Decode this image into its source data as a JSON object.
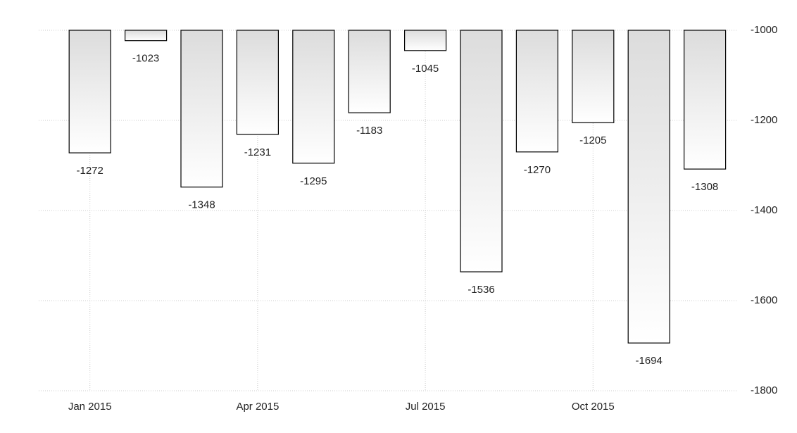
{
  "chart_data": {
    "type": "bar",
    "categories": [
      "Jan 2015",
      null,
      null,
      "Apr 2015",
      null,
      null,
      "Jul 2015",
      null,
      null,
      "Oct 2015",
      null,
      null
    ],
    "values": [
      -1272,
      -1023,
      -1348,
      -1231,
      -1295,
      -1183,
      -1045,
      -1536,
      -1270,
      -1205,
      -1694,
      -1308
    ],
    "color": "#e0e0e0",
    "ylim": [
      -1800,
      -1000
    ],
    "yticks": [
      -1800,
      -1600,
      -1400,
      -1200,
      -1000
    ],
    "grid": true
  }
}
